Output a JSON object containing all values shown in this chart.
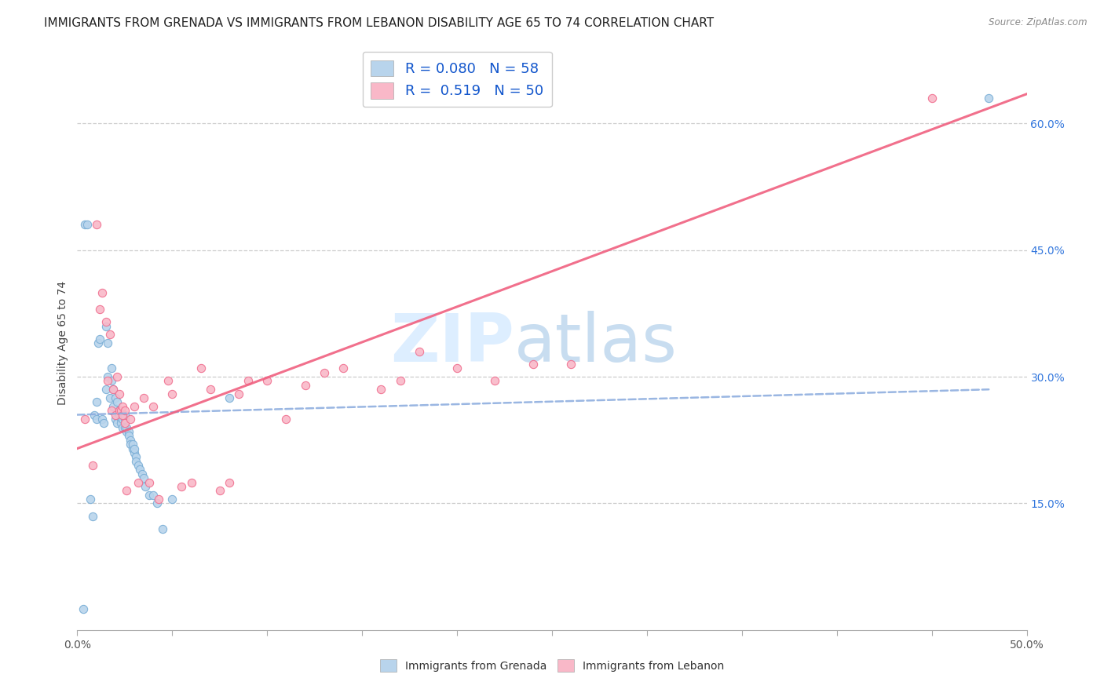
{
  "title": "IMMIGRANTS FROM GRENADA VS IMMIGRANTS FROM LEBANON DISABILITY AGE 65 TO 74 CORRELATION CHART",
  "source": "Source: ZipAtlas.com",
  "ylabel": "Disability Age 65 to 74",
  "xlim": [
    0.0,
    0.5
  ],
  "ylim": [
    0.0,
    0.68
  ],
  "xticks": [
    0.0,
    0.05,
    0.1,
    0.15,
    0.2,
    0.25,
    0.3,
    0.35,
    0.4,
    0.45,
    0.5
  ],
  "yticks_right": [
    0.15,
    0.3,
    0.45,
    0.6
  ],
  "ytick_right_labels": [
    "15.0%",
    "30.0%",
    "45.0%",
    "60.0%"
  ],
  "watermark_zip": "ZIP",
  "watermark_atlas": "atlas",
  "grenada_fill_color": "#b8d4ec",
  "grenada_edge_color": "#7aaed6",
  "lebanon_fill_color": "#f9b8c8",
  "lebanon_edge_color": "#f07090",
  "grenada_line_color": "#88aadd",
  "lebanon_line_color": "#f06080",
  "grenada_R": 0.08,
  "grenada_N": 58,
  "lebanon_R": 0.519,
  "lebanon_N": 50,
  "grenada_line_x0": 0.0,
  "grenada_line_y0": 0.255,
  "grenada_line_x1": 0.48,
  "grenada_line_y1": 0.285,
  "lebanon_line_x0": 0.0,
  "lebanon_line_y0": 0.215,
  "lebanon_line_x1": 0.5,
  "lebanon_line_y1": 0.635,
  "grenada_scatter_x": [
    0.003,
    0.004,
    0.005,
    0.007,
    0.008,
    0.009,
    0.01,
    0.01,
    0.011,
    0.012,
    0.013,
    0.014,
    0.015,
    0.015,
    0.016,
    0.016,
    0.017,
    0.018,
    0.018,
    0.019,
    0.019,
    0.02,
    0.02,
    0.021,
    0.021,
    0.022,
    0.022,
    0.023,
    0.023,
    0.024,
    0.024,
    0.025,
    0.025,
    0.025,
    0.026,
    0.026,
    0.027,
    0.027,
    0.028,
    0.028,
    0.029,
    0.029,
    0.03,
    0.03,
    0.031,
    0.031,
    0.032,
    0.033,
    0.034,
    0.035,
    0.036,
    0.038,
    0.04,
    0.042,
    0.045,
    0.05,
    0.08,
    0.48
  ],
  "grenada_scatter_y": [
    0.025,
    0.48,
    0.48,
    0.155,
    0.135,
    0.255,
    0.25,
    0.27,
    0.34,
    0.345,
    0.25,
    0.245,
    0.36,
    0.285,
    0.34,
    0.3,
    0.275,
    0.295,
    0.31,
    0.265,
    0.285,
    0.25,
    0.275,
    0.27,
    0.245,
    0.255,
    0.26,
    0.25,
    0.245,
    0.25,
    0.24,
    0.24,
    0.25,
    0.255,
    0.235,
    0.24,
    0.235,
    0.23,
    0.225,
    0.22,
    0.215,
    0.22,
    0.21,
    0.215,
    0.205,
    0.2,
    0.195,
    0.19,
    0.185,
    0.18,
    0.17,
    0.16,
    0.16,
    0.15,
    0.12,
    0.155,
    0.275,
    0.63
  ],
  "lebanon_scatter_x": [
    0.004,
    0.008,
    0.01,
    0.012,
    0.013,
    0.015,
    0.016,
    0.017,
    0.018,
    0.019,
    0.02,
    0.021,
    0.022,
    0.022,
    0.023,
    0.024,
    0.024,
    0.025,
    0.025,
    0.026,
    0.028,
    0.03,
    0.032,
    0.035,
    0.038,
    0.04,
    0.043,
    0.048,
    0.05,
    0.055,
    0.06,
    0.065,
    0.07,
    0.075,
    0.08,
    0.085,
    0.09,
    0.1,
    0.11,
    0.12,
    0.13,
    0.14,
    0.16,
    0.17,
    0.18,
    0.2,
    0.22,
    0.24,
    0.26,
    0.45
  ],
  "lebanon_scatter_y": [
    0.25,
    0.195,
    0.48,
    0.38,
    0.4,
    0.365,
    0.295,
    0.35,
    0.26,
    0.285,
    0.255,
    0.3,
    0.26,
    0.28,
    0.26,
    0.255,
    0.265,
    0.245,
    0.26,
    0.165,
    0.25,
    0.265,
    0.175,
    0.275,
    0.175,
    0.265,
    0.155,
    0.295,
    0.28,
    0.17,
    0.175,
    0.31,
    0.285,
    0.165,
    0.175,
    0.28,
    0.295,
    0.295,
    0.25,
    0.29,
    0.305,
    0.31,
    0.285,
    0.295,
    0.33,
    0.31,
    0.295,
    0.315,
    0.315,
    0.63
  ],
  "legend_fontsize": 13,
  "tick_fontsize": 10,
  "title_fontsize": 11,
  "right_tick_color": "#3377dd",
  "bottom_tick_color": "#555555",
  "watermark_color": "#ddeeff"
}
